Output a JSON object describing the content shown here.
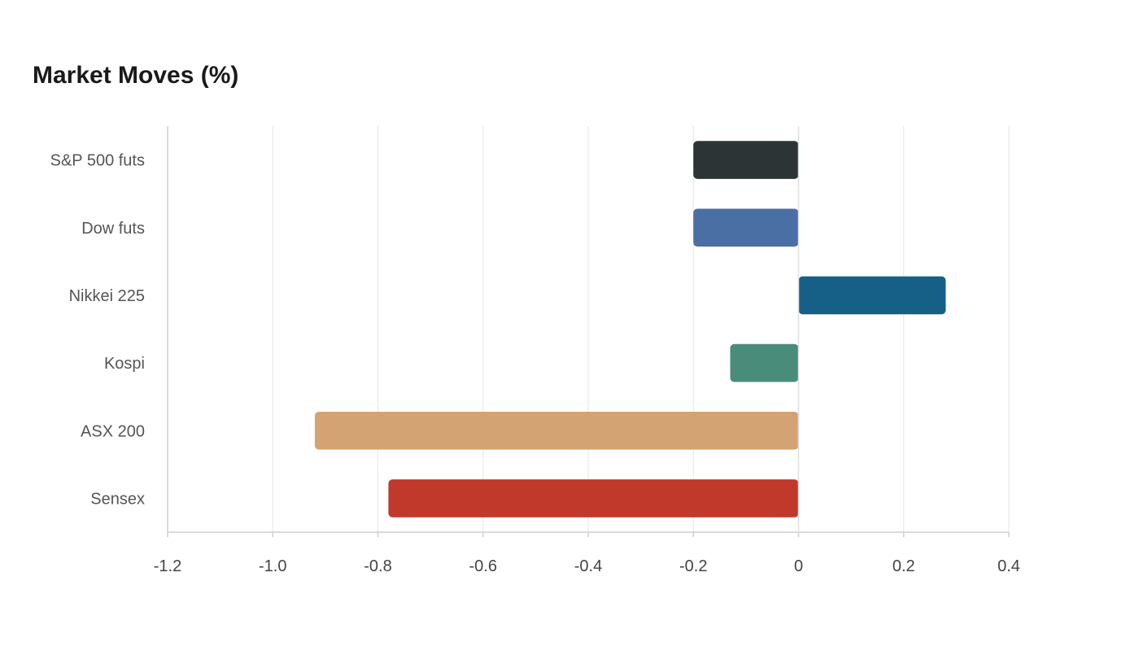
{
  "chart_data": {
    "type": "bar",
    "orientation": "horizontal",
    "title": "Market Moves (%)",
    "xlabel": "",
    "ylabel": "",
    "categories": [
      "S&P 500 futs",
      "Dow futs",
      "Nikkei 225",
      "Kospi",
      "ASX 200",
      "Sensex"
    ],
    "values": [
      -0.2,
      -0.2,
      0.28,
      -0.13,
      -0.92,
      -0.78
    ],
    "colors": [
      "#2d3436",
      "#4a6fa5",
      "#166088",
      "#4a8c7a",
      "#d4a373",
      "#c0392b"
    ],
    "xlim": [
      -1.2,
      0.4
    ],
    "xticks": [
      "-1.2",
      "-1.0",
      "-0.8",
      "-0.6",
      "-0.4",
      "-0.2",
      "0",
      "0.2",
      "0.4"
    ],
    "grid": true,
    "legend": "none"
  }
}
